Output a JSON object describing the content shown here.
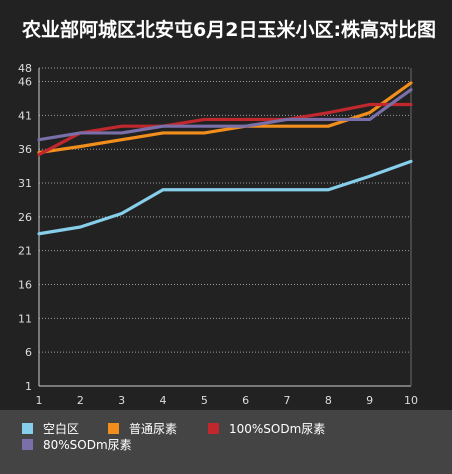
{
  "colors": {
    "background": "#222222",
    "legend_bg": "#444444",
    "grid": "#9a9a9a",
    "text": "#ffffff"
  },
  "chart_data": {
    "type": "line",
    "title": "农业部阿城区北安屯6月2日玉米小区:株高对比图",
    "xlabel": "",
    "ylabel": "",
    "x": [
      1,
      2,
      3,
      4,
      5,
      6,
      7,
      8,
      9,
      10
    ],
    "yticks": [
      1,
      6,
      11,
      16,
      21,
      26,
      31,
      36,
      41,
      46,
      48
    ],
    "ylim": [
      1,
      48
    ],
    "grid": true,
    "legend_position": "bottom",
    "series": [
      {
        "name": "空白区",
        "color": "#87ceeb",
        "values": [
          23.5,
          24.5,
          26.5,
          30,
          30,
          30,
          30,
          30,
          32,
          34.2
        ]
      },
      {
        "name": "普通尿素",
        "color": "#f28e1c",
        "values": [
          35.5,
          36.4,
          37.4,
          38.4,
          38.4,
          39.4,
          39.4,
          39.4,
          41.4,
          45.8
        ]
      },
      {
        "name": "100%SODm尿素",
        "color": "#c0282e",
        "values": [
          35.2,
          38.4,
          39.4,
          39.4,
          40.4,
          40.4,
          40.4,
          41.4,
          42.6,
          42.6
        ]
      },
      {
        "name": "80%SODm尿素",
        "color": "#7a6fa8",
        "values": [
          37.4,
          38.4,
          38.4,
          39.4,
          39.4,
          39.4,
          40.4,
          40.4,
          40.4,
          44.8
        ]
      }
    ]
  }
}
